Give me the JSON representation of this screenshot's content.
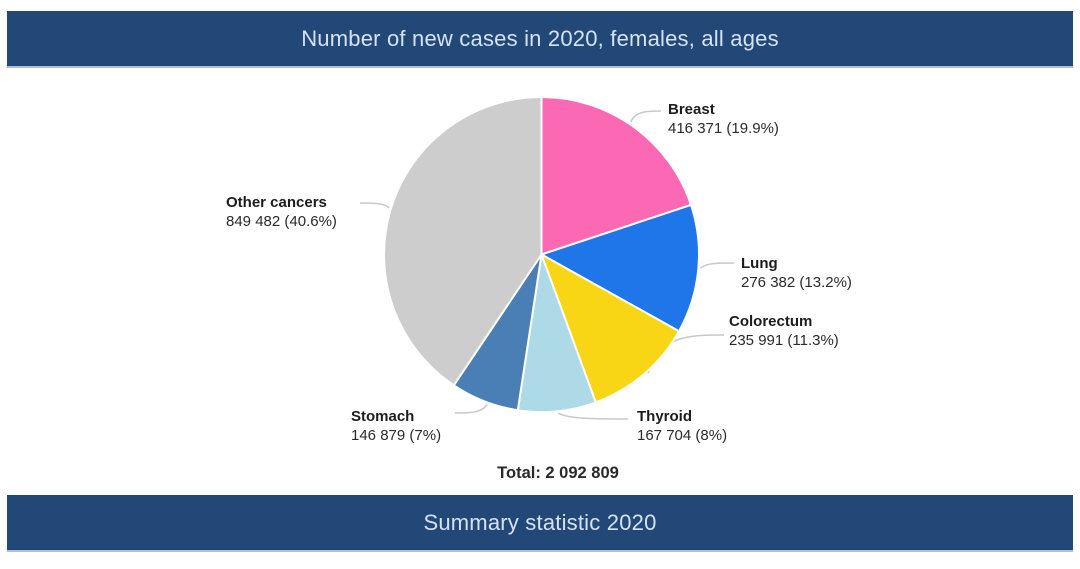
{
  "header": {
    "title": "Number of new cases in 2020, females, all ages"
  },
  "footer": {
    "title": "Summary statistic 2020"
  },
  "chart_data": {
    "type": "pie",
    "title": "Number of new cases in 2020, females, all ages",
    "subtitle": "Summary statistic 2020",
    "total": 2092809,
    "total_display": "Total: 2 092 809",
    "legend_position": "outside-labels",
    "slices": [
      {
        "label": "Breast",
        "value": 416371,
        "pct": 19.9,
        "display": "416 371 (19.9%)",
        "color": "#FB69B5"
      },
      {
        "label": "Lung",
        "value": 276382,
        "pct": 13.2,
        "display": "276 382 (13.2%)",
        "color": "#1E76E8"
      },
      {
        "label": "Colorectum",
        "value": 235991,
        "pct": 11.3,
        "display": "235 991 (11.3%)",
        "color": "#F8D615"
      },
      {
        "label": "Thyroid",
        "value": 167704,
        "pct": 8.0,
        "display": "167 704 (8%)",
        "color": "#AED9E6"
      },
      {
        "label": "Stomach",
        "value": 146879,
        "pct": 7.0,
        "display": "146 879 (7%)",
        "color": "#4A7FB5"
      },
      {
        "label": "Other cancers",
        "value": 849482,
        "pct": 40.6,
        "display": "849 482 (40.6%)",
        "color": "#CDCDCD"
      }
    ]
  },
  "colors": {
    "banner_background": "#224878",
    "banner_text": "#D6E2F2",
    "label_text": "#2A2A2A",
    "leader_line": "#C8C8C8",
    "slice_border": "#FFFFFF"
  }
}
